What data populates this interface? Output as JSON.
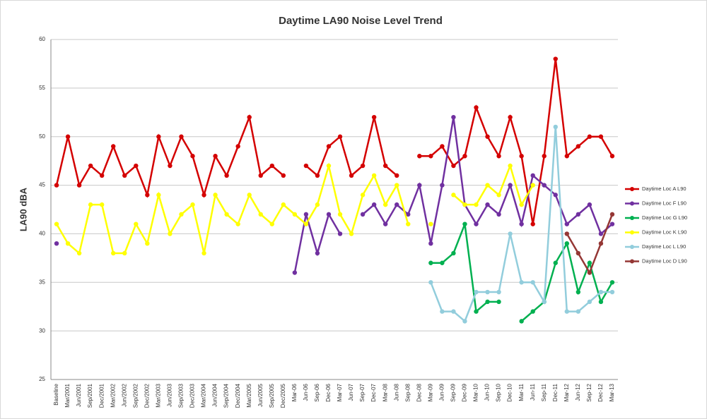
{
  "chart_data": {
    "type": "line",
    "title": "Daytime LA90 Noise Level Trend",
    "y_label": "LA90 dBA",
    "categories": [
      "Baseline",
      "Mar/2001",
      "Jun/2001",
      "Sep/2001",
      "Dec/2001",
      "Mar/2002",
      "Jun/2002",
      "Sep/2002",
      "Dec/2002",
      "Mar/2003",
      "Jun/2003",
      "Sep/2003",
      "Dec/2003",
      "Mar/2004",
      "Jun/2004",
      "Sep/2004",
      "Dec/2004",
      "Mar/2005",
      "Jun/2005",
      "Sep/2005",
      "Dec/2005",
      "Mar-06",
      "Jun-06",
      "Sep-06",
      "Dec-06",
      "Mar-07",
      "Jun-07",
      "Sep-07",
      "Dec-07",
      "Mar-08",
      "Jun-08",
      "Sep-08",
      "Dec-08",
      "Mar-09",
      "Jun-09",
      "Sep-09",
      "Dec-09",
      "Mar-10",
      "Jun-10",
      "Sep-10",
      "Dec-10",
      "Mar-11",
      "Jun-11",
      "Sep-11",
      "Dec-11",
      "Mar-12",
      "Jun-12",
      "Sep-12",
      "Dec-12",
      "Mar-13"
    ],
    "series": [
      {
        "name": "Daytime Loc A L90",
        "color": "#d40000",
        "values": [
          45,
          50,
          45,
          47,
          46,
          49,
          46,
          47,
          44,
          50,
          47,
          50,
          48,
          44,
          48,
          46,
          49,
          52,
          46,
          47,
          46,
          null,
          47,
          46,
          49,
          50,
          46,
          47,
          52,
          47,
          46,
          null,
          48,
          48,
          49,
          47,
          48,
          53,
          50,
          48,
          52,
          48,
          41,
          48,
          58,
          48,
          49,
          50,
          50,
          48
        ]
      },
      {
        "name": "Daytime Loc F L90",
        "color": "#7030a0",
        "values": [
          39,
          null,
          null,
          null,
          null,
          null,
          null,
          null,
          null,
          null,
          null,
          null,
          null,
          null,
          null,
          null,
          null,
          null,
          null,
          null,
          null,
          36,
          42,
          38,
          42,
          40,
          null,
          42,
          43,
          41,
          43,
          42,
          45,
          39,
          45,
          52,
          43,
          41,
          43,
          42,
          45,
          41,
          46,
          45,
          44,
          41,
          42,
          43,
          40,
          41
        ]
      },
      {
        "name": "Daytime Loc G L90",
        "color": "#00b050",
        "values": [
          null,
          null,
          null,
          null,
          null,
          null,
          null,
          null,
          null,
          null,
          null,
          null,
          null,
          null,
          null,
          null,
          null,
          null,
          null,
          null,
          null,
          null,
          null,
          null,
          null,
          null,
          null,
          null,
          null,
          null,
          null,
          null,
          null,
          37,
          37,
          38,
          41,
          32,
          33,
          33,
          null,
          31,
          32,
          33,
          37,
          39,
          34,
          37,
          33,
          35
        ]
      },
      {
        "name": "Daytime Loc K L90",
        "color": "#ffff00",
        "values": [
          41,
          39,
          38,
          43,
          43,
          38,
          38,
          41,
          39,
          44,
          40,
          42,
          43,
          38,
          44,
          42,
          41,
          44,
          42,
          41,
          43,
          42,
          41,
          43,
          47,
          42,
          40,
          44,
          46,
          43,
          45,
          41,
          null,
          41,
          null,
          44,
          43,
          43,
          45,
          44,
          47,
          43,
          45,
          null,
          null,
          null,
          null,
          null,
          null,
          null
        ]
      },
      {
        "name": "Daytime Loc L L90",
        "color": "#92cddc",
        "values": [
          null,
          null,
          null,
          null,
          null,
          null,
          null,
          null,
          null,
          null,
          null,
          null,
          null,
          null,
          null,
          null,
          null,
          null,
          null,
          null,
          null,
          null,
          null,
          null,
          null,
          null,
          null,
          null,
          null,
          null,
          null,
          null,
          null,
          35,
          32,
          32,
          31,
          34,
          34,
          34,
          40,
          35,
          35,
          33,
          51,
          32,
          32,
          33,
          34,
          34
        ]
      },
      {
        "name": "Daytime Loc D L90",
        "color": "#953735",
        "values": [
          null,
          null,
          null,
          null,
          null,
          null,
          null,
          null,
          null,
          null,
          null,
          null,
          null,
          null,
          null,
          null,
          null,
          null,
          null,
          null,
          null,
          null,
          null,
          null,
          null,
          null,
          null,
          null,
          null,
          null,
          null,
          null,
          null,
          null,
          null,
          null,
          null,
          null,
          null,
          null,
          null,
          null,
          null,
          null,
          null,
          40,
          38,
          36,
          39,
          42
        ]
      }
    ],
    "ylim": [
      25,
      60
    ],
    "yticks": [
      25,
      30,
      35,
      40,
      45,
      50,
      55,
      60
    ],
    "grid": true,
    "legend": "right"
  }
}
